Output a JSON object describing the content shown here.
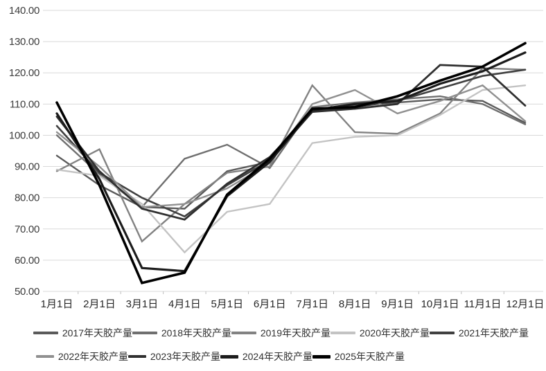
{
  "chart_data": {
    "type": "line",
    "title": "",
    "xlabel": "",
    "ylabel": "",
    "grid": true,
    "legend_position": "bottom",
    "ylim": [
      50,
      140
    ],
    "ytick_step": 10,
    "ytick_labels": [
      "50.00",
      "60.00",
      "70.00",
      "80.00",
      "90.00",
      "100.00",
      "110.00",
      "120.00",
      "130.00",
      "140.00"
    ],
    "categories": [
      "1月1日",
      "2月1日",
      "3月1日",
      "4月1日",
      "5月1日",
      "6月1日",
      "7月1日",
      "8月1日",
      "9月1日",
      "10月1日",
      "11月1日",
      "12月1日"
    ],
    "series": [
      {
        "name": "2017年天胶产量",
        "color": "#5a5a5a",
        "width": 2.4,
        "values": [
          93.5,
          84,
          77,
          76.5,
          88.5,
          91.5,
          108,
          109.5,
          110.5,
          111.5,
          111,
          104
        ]
      },
      {
        "name": "2018年天胶产量",
        "color": "#6f6f6f",
        "width": 2.4,
        "values": [
          100,
          87.5,
          77,
          92.5,
          97,
          89.5,
          109,
          110.5,
          111.5,
          112.5,
          110,
          103.5
        ]
      },
      {
        "name": "2019年天胶产量",
        "color": "#828282",
        "width": 2.4,
        "values": [
          88.5,
          95.5,
          66,
          78,
          88,
          90,
          116,
          101,
          100.5,
          107,
          121.5,
          121
        ]
      },
      {
        "name": "2020年天胶产量",
        "color": "#c3c3c3",
        "width": 2.4,
        "values": [
          89,
          87,
          78,
          62.5,
          75.5,
          78,
          97.5,
          99.5,
          100,
          106.5,
          114.5,
          116
        ]
      },
      {
        "name": "2021年天胶产量",
        "color": "#404040",
        "width": 2.6,
        "values": [
          103,
          88,
          80,
          74,
          84,
          92,
          107.5,
          109,
          111,
          115,
          119,
          121
        ]
      },
      {
        "name": "2022年天胶产量",
        "color": "#909090",
        "width": 2.4,
        "values": [
          101,
          90,
          77,
          78,
          83,
          91,
          110,
          114.5,
          107,
          111,
          116,
          104.5
        ]
      },
      {
        "name": "2023年天胶产量",
        "color": "#303030",
        "width": 2.8,
        "values": [
          106,
          88.5,
          76.5,
          73,
          84.5,
          93,
          107.5,
          108.5,
          110,
          122.5,
          122,
          109.5
        ]
      },
      {
        "name": "2024年天胶产量",
        "color": "#1c1c1c",
        "width": 3.2,
        "values": [
          107,
          86,
          57.5,
          56.5,
          80.5,
          91.5,
          108,
          110,
          111,
          116.5,
          120.5,
          126.5
        ]
      },
      {
        "name": "2025年天胶产量",
        "color": "#000000",
        "width": 3.6,
        "values": [
          110.5,
          84,
          52.7,
          56,
          81,
          92.5,
          108.5,
          109,
          112.5,
          117.5,
          122,
          129.5
        ]
      }
    ],
    "legend_rows": [
      [
        0,
        1,
        2,
        3,
        4
      ],
      [
        5,
        6,
        7,
        8
      ]
    ]
  },
  "style": {
    "grid_color": "#d9d9d9",
    "axis_color": "#bfbfbf"
  }
}
